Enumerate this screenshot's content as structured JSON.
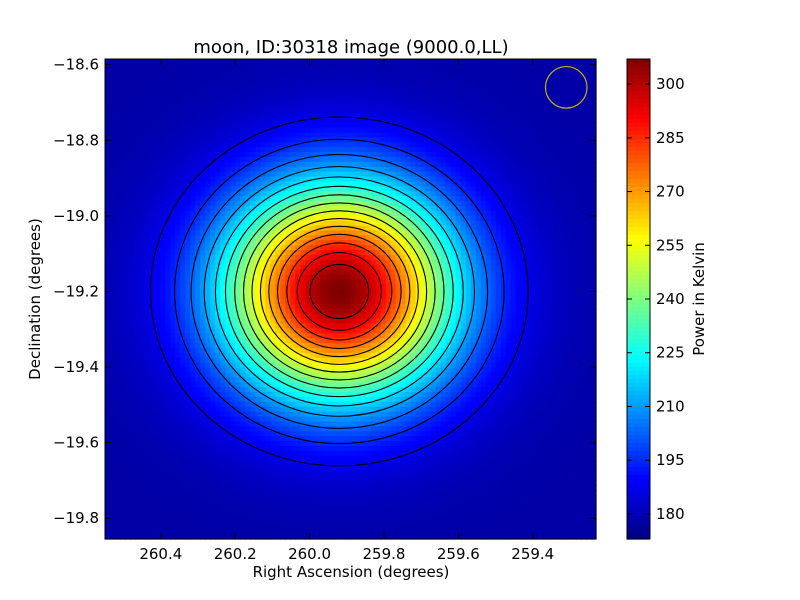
{
  "chart_data": {
    "type": "heatmap",
    "title": "moon, ID:30318 image (9000.0,LL)",
    "xlabel": "Right Ascension (degrees)",
    "ylabel": "Declination (degrees)",
    "colorbar_label": "Power in Kelvin",
    "colormap": "jet",
    "x_range": [
      260.55,
      259.23
    ],
    "y_range": [
      -19.855,
      -18.585
    ],
    "x_ticks": [
      "260.4",
      "260.2",
      "260.0",
      "259.8",
      "259.6",
      "259.4"
    ],
    "y_ticks": [
      "−18.6",
      "−18.8",
      "−19.0",
      "−19.2",
      "−19.4",
      "−19.6",
      "−19.8"
    ],
    "colorbar_range": [
      173,
      307
    ],
    "colorbar_ticks": [
      "180",
      "195",
      "210",
      "225",
      "240",
      "255",
      "270",
      "285",
      "300"
    ],
    "source": {
      "ra": 259.92,
      "dec": -19.2,
      "peak": 307,
      "background": 178,
      "sigma_ra": 0.22,
      "sigma_dec": 0.2
    },
    "contour_levels": [
      187,
      195,
      203,
      211,
      219,
      227,
      235,
      243,
      251,
      259,
      267,
      275,
      283,
      291,
      299
    ],
    "beam": {
      "ra": 259.31,
      "dec": -18.66,
      "radius_deg": 0.055,
      "color": "#c8b400"
    },
    "contour_color": "#000000"
  }
}
